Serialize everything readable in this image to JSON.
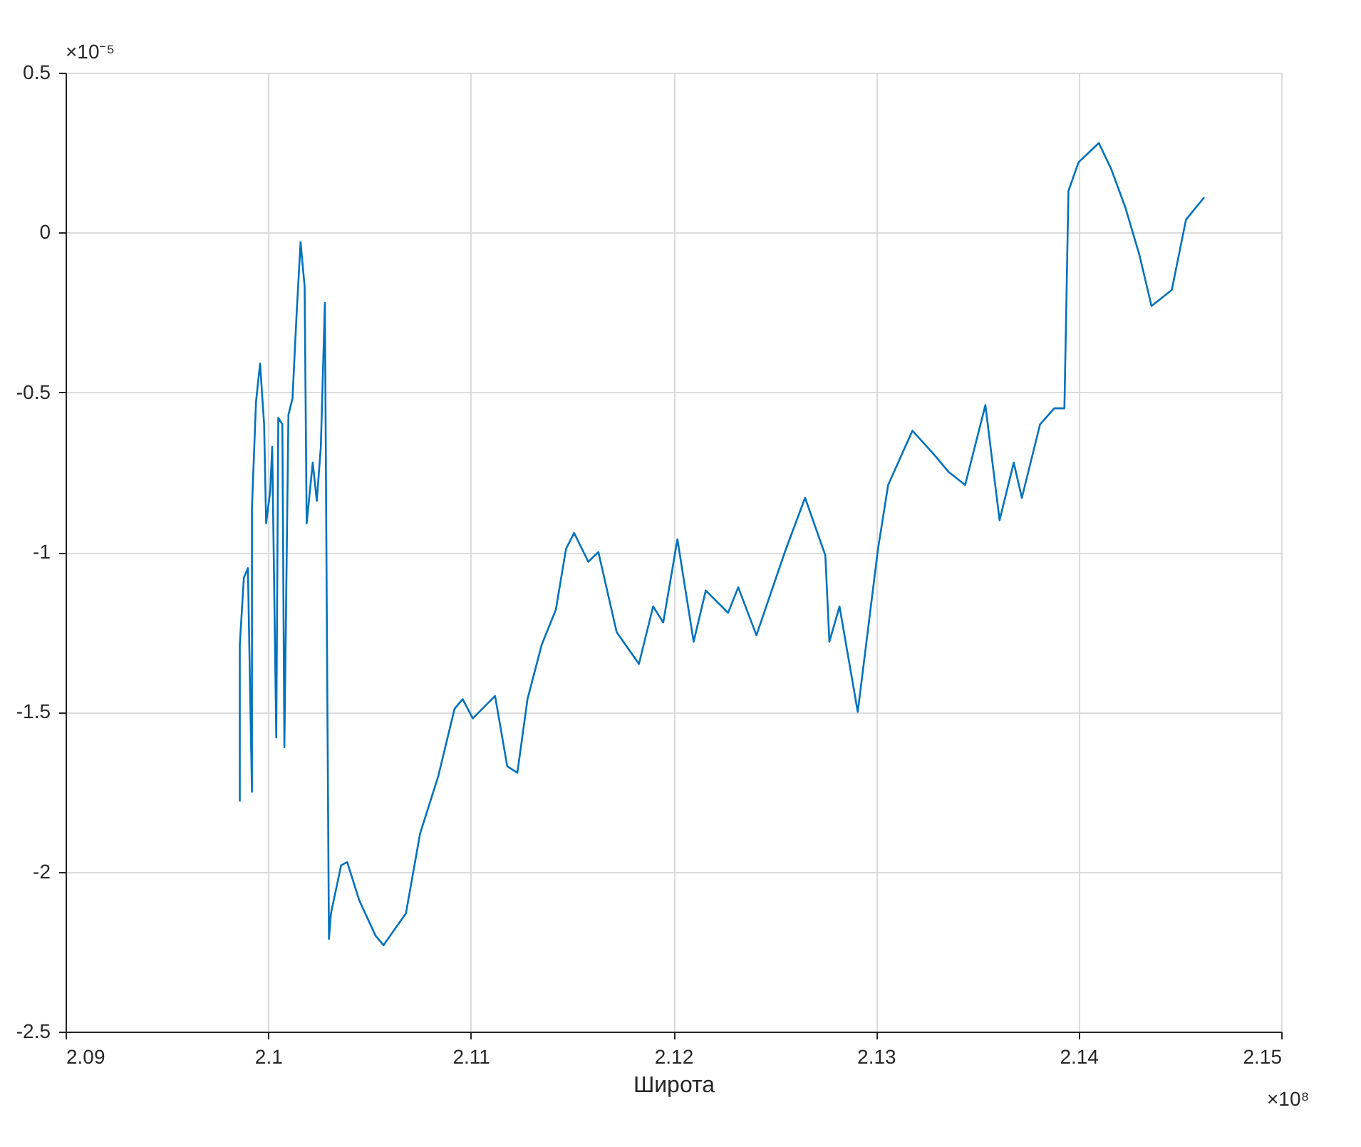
{
  "chart_data": {
    "type": "line",
    "xlabel": "Широта",
    "annotations": [
      "×10⁻⁵",
      "×10⁸"
    ],
    "xlim": [
      2.09,
      2.15
    ],
    "xticks": [
      2.09,
      2.1,
      2.11,
      2.12,
      2.13,
      2.14,
      2.15
    ],
    "ylim": [
      -2.5,
      0.5
    ],
    "yticks": [
      -2.5,
      -2,
      -1.5,
      -1,
      -0.5,
      0,
      0.5
    ],
    "grid": true,
    "line_style": "solid",
    "x": [
      2.0986,
      2.0986,
      2.0988,
      2.099,
      2.0992,
      2.0992,
      2.0994,
      2.0996,
      2.0998,
      2.0999,
      2.1001,
      2.1002,
      2.1004,
      2.1005,
      2.1007,
      2.1008,
      2.101,
      2.1012,
      2.1014,
      2.1016,
      2.1018,
      2.1019,
      2.1022,
      2.1024,
      2.1026,
      2.1028,
      2.1029,
      2.103,
      2.1031,
      2.1036,
      2.1039,
      2.1045,
      2.1053,
      2.1057,
      2.1058,
      2.1068,
      2.1075,
      2.1084,
      2.1092,
      2.1096,
      2.1101,
      2.1112,
      2.1118,
      2.1123,
      2.1128,
      2.1135,
      2.1142,
      2.1147,
      2.1151,
      2.1158,
      2.1163,
      2.1172,
      2.1183,
      2.119,
      2.1195,
      2.1202,
      2.121,
      2.1216,
      2.1227,
      2.1232,
      2.1241,
      2.1255,
      2.1265,
      2.1275,
      2.1277,
      2.1282,
      2.1291,
      2.1301,
      2.1306,
      2.1318,
      2.1328,
      2.1336,
      2.1344,
      2.1354,
      2.1361,
      2.1368,
      2.1372,
      2.1381,
      2.1388,
      2.1393,
      2.1395,
      2.14,
      2.141,
      2.1416,
      2.1423,
      2.143,
      2.1436,
      2.1446,
      2.1453,
      2.1462
    ],
    "series": [
      {
        "color": "#0072bd",
        "values": [
          -1.78,
          -1.29,
          -1.08,
          -1.05,
          -1.75,
          -0.86,
          -0.53,
          -0.41,
          -0.6,
          -0.91,
          -0.81,
          -0.67,
          -1.58,
          -0.58,
          -0.6,
          -1.61,
          -0.57,
          -0.52,
          -0.26,
          -0.03,
          -0.17,
          -0.91,
          -0.72,
          -0.84,
          -0.67,
          -0.22,
          -1.25,
          -2.21,
          -2.13,
          -1.98,
          -1.97,
          -2.09,
          -2.2,
          -2.23,
          -2.22,
          -2.13,
          -1.88,
          -1.7,
          -1.49,
          -1.46,
          -1.52,
          -1.45,
          -1.67,
          -1.69,
          -1.46,
          -1.29,
          -1.18,
          -0.99,
          -0.94,
          -1.03,
          -1.0,
          -1.25,
          -1.35,
          -1.17,
          -1.22,
          -0.96,
          -1.28,
          -1.12,
          -1.19,
          -1.11,
          -1.26,
          -1.0,
          -0.83,
          -1.01,
          -1.28,
          -1.17,
          -1.5,
          -0.99,
          -0.79,
          -0.62,
          -0.69,
          -0.75,
          -0.79,
          -0.54,
          -0.9,
          -0.72,
          -0.83,
          -0.6,
          -0.55,
          -0.55,
          0.13,
          0.22,
          0.28,
          0.2,
          0.08,
          -0.07,
          -0.23,
          -0.18,
          0.04,
          0.11
        ]
      }
    ]
  }
}
